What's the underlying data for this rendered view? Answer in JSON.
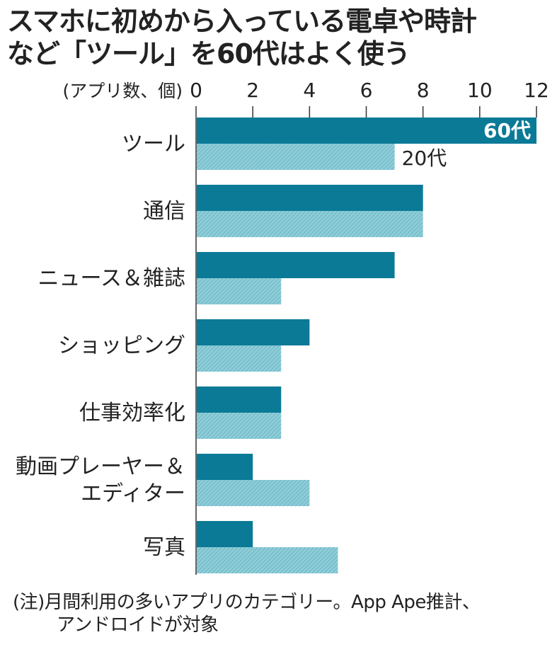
{
  "chart_data": {
    "type": "bar",
    "orientation": "horizontal",
    "title_lines": [
      "スマホに初めから入っている電卓や時計",
      "など「ツール」を60代はよく使う"
    ],
    "unit_label": "(アプリ数、個)",
    "xlim": [
      0,
      12
    ],
    "ticks": [
      "0",
      "2",
      "4",
      "6",
      "8",
      "10",
      "12"
    ],
    "categories": [
      "ツール",
      "通信",
      "ニュース＆雑誌",
      "ショッピング",
      "仕事効率化",
      "動画プレーヤー＆\nエディター",
      "写真"
    ],
    "series": [
      {
        "name": "60代",
        "color": "#0b7a97",
        "values": [
          12,
          8,
          7,
          4,
          3,
          2,
          2
        ]
      },
      {
        "name": "20代",
        "color": "#7fc3cf",
        "values": [
          7,
          8,
          3,
          3,
          3,
          4,
          5
        ]
      }
    ],
    "note_lines": [
      "(注)月間利用の多いアプリのカテゴリー。App Ape推計、",
      "アンドロイドが対象"
    ]
  }
}
